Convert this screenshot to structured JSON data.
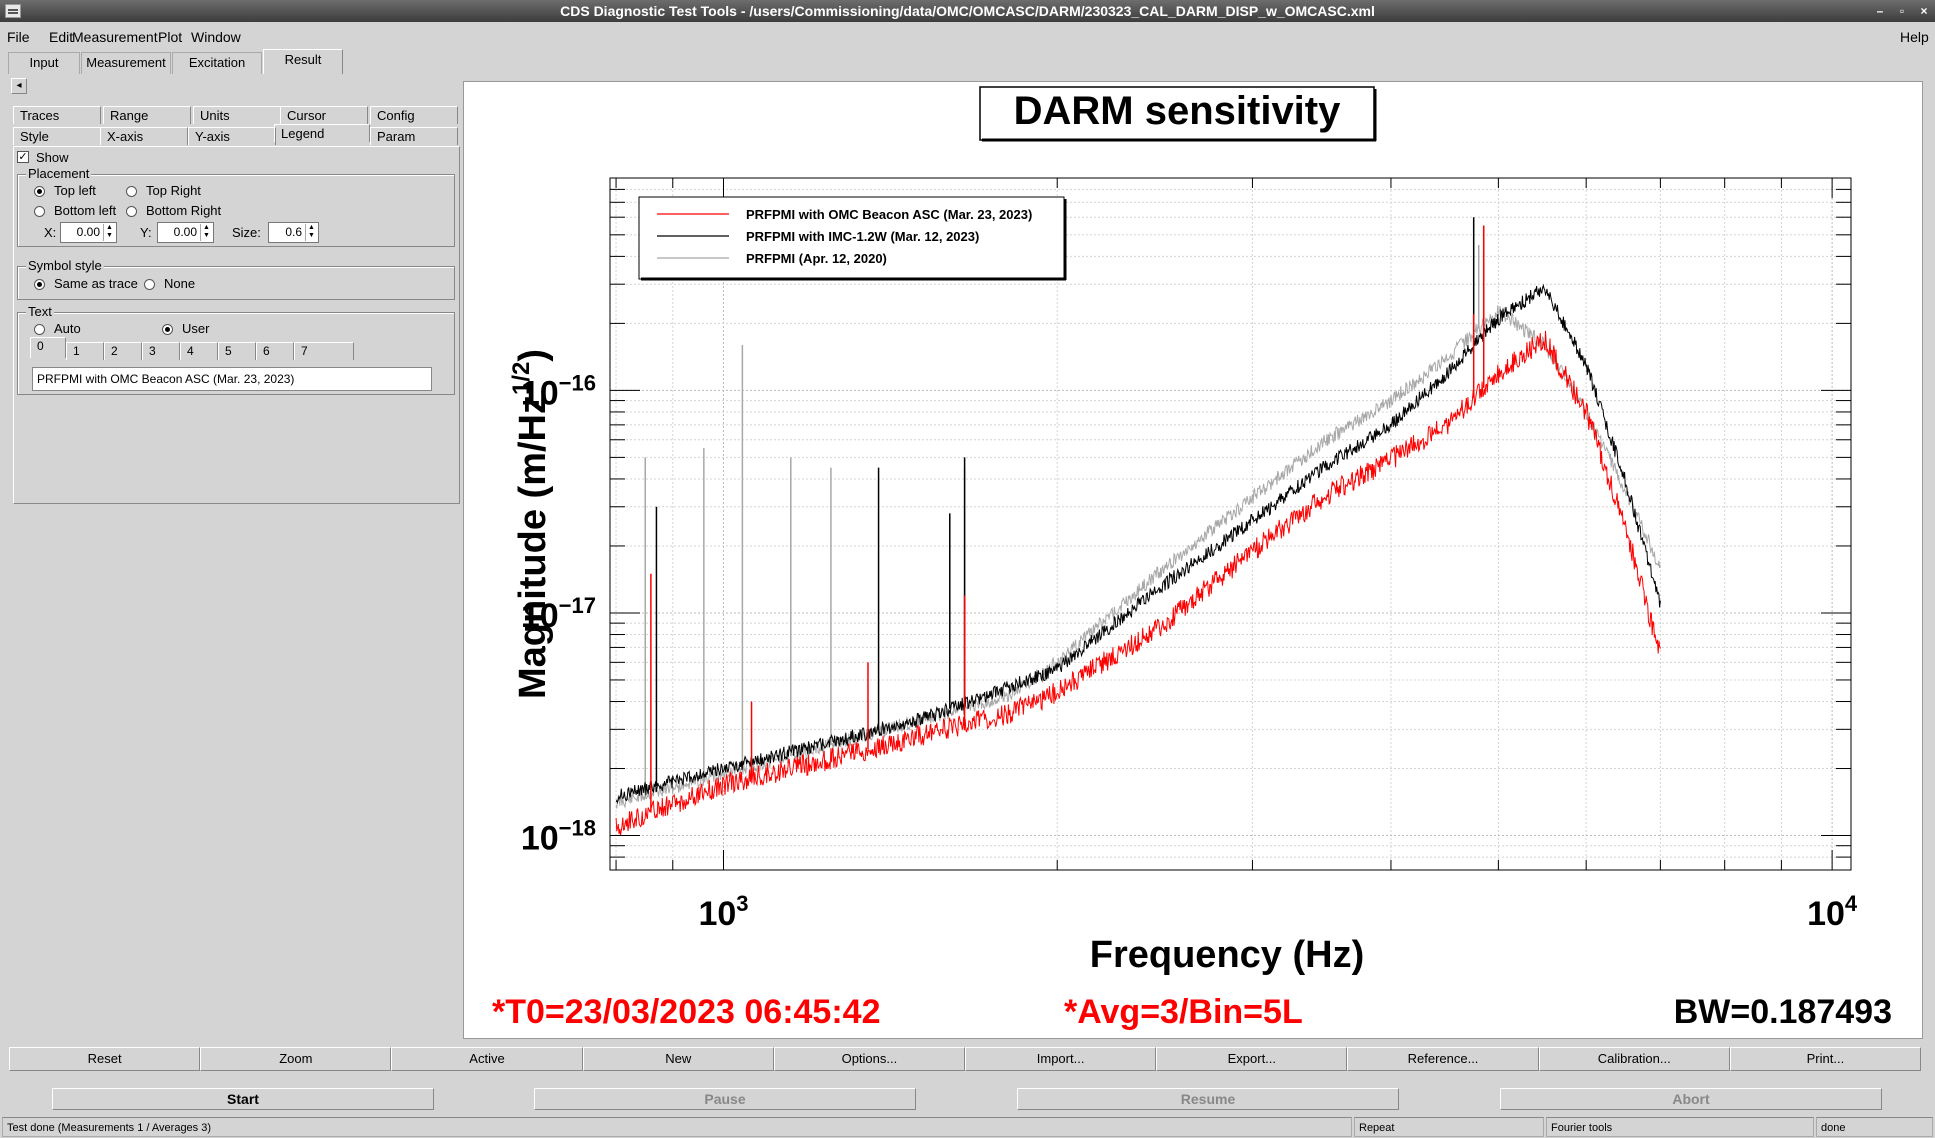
{
  "window": {
    "title": "CDS Diagnostic Test Tools - /users/Commissioning/data/OMC/OMCASC/DARM/230323_CAL_DARM_DISP_w_OMCASC.xml",
    "controls": [
      "–",
      "▫",
      "×"
    ]
  },
  "menu": {
    "file": "File",
    "edit": "Edit",
    "measurement": "Measurement",
    "plot": "Plot",
    "window": "Window",
    "help": "Help"
  },
  "tabs": [
    "Input",
    "Measurement",
    "Excitation",
    "Result"
  ],
  "collapse_arrow": "◂",
  "subtabs_row1": [
    "Traces",
    "Range",
    "Units",
    "Cursor",
    "Config"
  ],
  "subtabs_row2": [
    "Style",
    "X-axis",
    "Y-axis",
    "Legend",
    "Param"
  ],
  "legend_panel": {
    "show_label": "Show",
    "show_checked": true,
    "placement_title": "Placement",
    "placement": {
      "top_left": "Top left",
      "top_right": "Top Right",
      "bottom_left": "Bottom left",
      "bottom_right": "Bottom Right"
    },
    "x_label": "X:",
    "x_value": "0.00",
    "y_label": "Y:",
    "y_value": "0.00",
    "size_label": "Size:",
    "size_value": "0.6",
    "symbol_title": "Symbol style",
    "symbol": {
      "same": "Same as trace",
      "none": "None"
    },
    "text_title": "Text",
    "text_mode": {
      "auto": "Auto",
      "user": "User"
    },
    "text_indices": [
      "0",
      "1",
      "2",
      "3",
      "4",
      "5",
      "6",
      "7"
    ],
    "text_value": "PRFPMI with OMC Beacon ASC (Mar. 23, 2023)"
  },
  "chart_data": {
    "type": "line",
    "title": "DARM sensitivity",
    "xlabel": "Frequency (Hz)",
    "ylabel_main": "Magnitude (m/Hz",
    "ylabel_exp": "1/2",
    "ylabel_close": ")",
    "xscale": "log",
    "yscale": "log",
    "xlim": [
      790,
      10400
    ],
    "ylim": [
      7e-19,
      9e-16
    ],
    "grid": true,
    "legend_position": "top-left",
    "x_ticks": [
      {
        "base": "10",
        "exp": "3",
        "value": 1000
      },
      {
        "base": "10",
        "exp": "4",
        "value": 10000
      }
    ],
    "y_ticks": [
      {
        "base": "10",
        "exp": "−16",
        "value": 1e-16
      },
      {
        "base": "10",
        "exp": "−17",
        "value": 1e-17
      },
      {
        "base": "10",
        "exp": "−18",
        "value": 1e-18
      }
    ],
    "series": [
      {
        "name": "PRFPMI (Apr. 12, 2020)",
        "color": "#a8a8a8",
        "x": [
          800,
          1000,
          1200,
          1500,
          1800,
          2000,
          2500,
          3000,
          3500,
          4000,
          4500,
          5000,
          5500,
          6000,
          6500,
          7000
        ],
        "y": [
          1.4e-18,
          1.9e-18,
          2.4e-18,
          3.3e-18,
          4.2e-18,
          6e-18,
          1.6e-17,
          3.3e-17,
          6e-17,
          9e-17,
          1.4e-16,
          2.3e-16,
          1.6e-16,
          8e-17,
          3.6e-17,
          1.6e-17
        ],
        "peaks": [
          [
            850,
            5e-17
          ],
          [
            960,
            5.5e-17
          ],
          [
            1040,
            1.6e-16
          ],
          [
            1150,
            5e-17
          ],
          [
            1250,
            4.5e-17
          ],
          [
            1650,
            4.5e-17
          ],
          [
            4800,
            4.5e-16
          ]
        ]
      },
      {
        "name": "PRFPMI with IMC-1.2W (Mar. 12, 2023)",
        "color": "#000000",
        "x": [
          800,
          1000,
          1200,
          1500,
          1800,
          2000,
          2500,
          3000,
          3500,
          4000,
          4500,
          5000,
          5500,
          6000,
          6500,
          7000
        ],
        "y": [
          1.5e-18,
          2e-18,
          2.5e-18,
          3.3e-18,
          4.6e-18,
          5.6e-18,
          1.35e-17,
          2.6e-17,
          4.6e-17,
          7e-17,
          1.2e-16,
          2.1e-16,
          2.9e-16,
          1.3e-16,
          4e-17,
          1.1e-17
        ],
        "peaks": [
          [
            870,
            3e-17
          ],
          [
            1380,
            4.5e-17
          ],
          [
            1600,
            2.8e-17
          ],
          [
            1650,
            5e-17
          ],
          [
            4750,
            6e-16
          ],
          [
            4850,
            5.5e-16
          ]
        ]
      },
      {
        "name": "PRFPMI with OMC Beacon ASC (Mar. 23, 2023)",
        "color": "#ff0000",
        "x": [
          800,
          1000,
          1200,
          1500,
          1800,
          2000,
          2500,
          3000,
          3500,
          4000,
          4500,
          5000,
          5500,
          6000,
          6500,
          7000
        ],
        "y": [
          1.1e-18,
          1.7e-18,
          2.1e-18,
          2.8e-18,
          3.5e-18,
          4.4e-18,
          9e-18,
          1.9e-17,
          3.4e-17,
          4.9e-17,
          7e-17,
          1.2e-16,
          1.7e-16,
          8e-17,
          2.5e-17,
          6.5e-18
        ],
        "peaks": [
          [
            860,
            1.5e-17
          ],
          [
            1060,
            4e-18
          ],
          [
            1350,
            6e-18
          ],
          [
            1650,
            1.2e-17
          ],
          [
            4750,
            2.2e-16
          ],
          [
            4850,
            5.5e-16
          ]
        ]
      }
    ],
    "legend": [
      {
        "name": "PRFPMI with OMC Beacon ASC (Mar. 23, 2023)",
        "color": "#ff0000"
      },
      {
        "name": "PRFPMI with IMC-1.2W (Mar. 12, 2023)",
        "color": "#000000"
      },
      {
        "name": "PRFPMI (Apr. 12, 2020)",
        "color": "#a8a8a8"
      }
    ],
    "annotations": {
      "t0": "*T0=23/03/2023 06:45:42",
      "avg": "*Avg=3/Bin=5L",
      "bw": "BW=0.187493"
    }
  },
  "buttons": [
    "Reset",
    "Zoom",
    "Active",
    "New",
    "Options...",
    "Import...",
    "Export...",
    "Reference...",
    "Calibration...",
    "Print..."
  ],
  "controls": {
    "start": "Start",
    "pause": "Pause",
    "resume": "Resume",
    "abort": "Abort"
  },
  "status": {
    "message": "Test done (Measurements 1 / Averages 3)",
    "repeat": "Repeat",
    "tools": "Fourier tools",
    "state": "done"
  }
}
